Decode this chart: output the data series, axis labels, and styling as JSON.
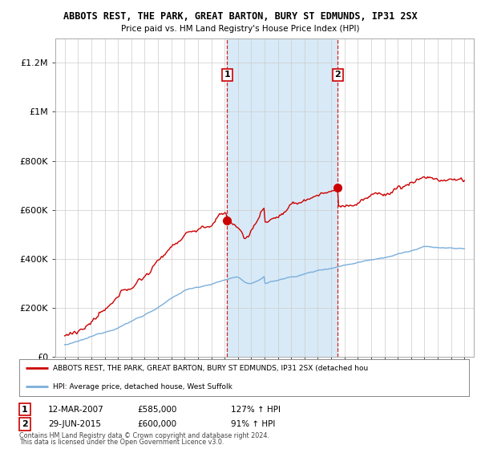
{
  "title": "ABBOTS REST, THE PARK, GREAT BARTON, BURY ST EDMUNDS, IP31 2SX",
  "subtitle": "Price paid vs. HM Land Registry's House Price Index (HPI)",
  "legend_line1": "ABBOTS REST, THE PARK, GREAT BARTON, BURY ST EDMUNDS, IP31 2SX (detached hou",
  "legend_line2": "HPI: Average price, detached house, West Suffolk",
  "footer1": "Contains HM Land Registry data © Crown copyright and database right 2024.",
  "footer2": "This data is licensed under the Open Government Licence v3.0.",
  "transaction1_date": "12-MAR-2007",
  "transaction1_price": "£585,000",
  "transaction1_hpi": "127% ↑ HPI",
  "transaction2_date": "29-JUN-2015",
  "transaction2_price": "£600,000",
  "transaction2_hpi": "91% ↑ HPI",
  "red_color": "#cc0000",
  "blue_color": "#7aaedb",
  "shading_color": "#d8eaf7",
  "dashed_line_color": "#cc0000",
  "background_color": "#ffffff",
  "grid_color": "#cccccc",
  "ylim": [
    0,
    1300000
  ],
  "yticks": [
    0,
    200000,
    400000,
    600000,
    800000,
    1000000,
    1200000
  ],
  "start_year": 1995,
  "end_year": 2025,
  "transaction1_x": 2007.2,
  "transaction2_x": 2015.5
}
